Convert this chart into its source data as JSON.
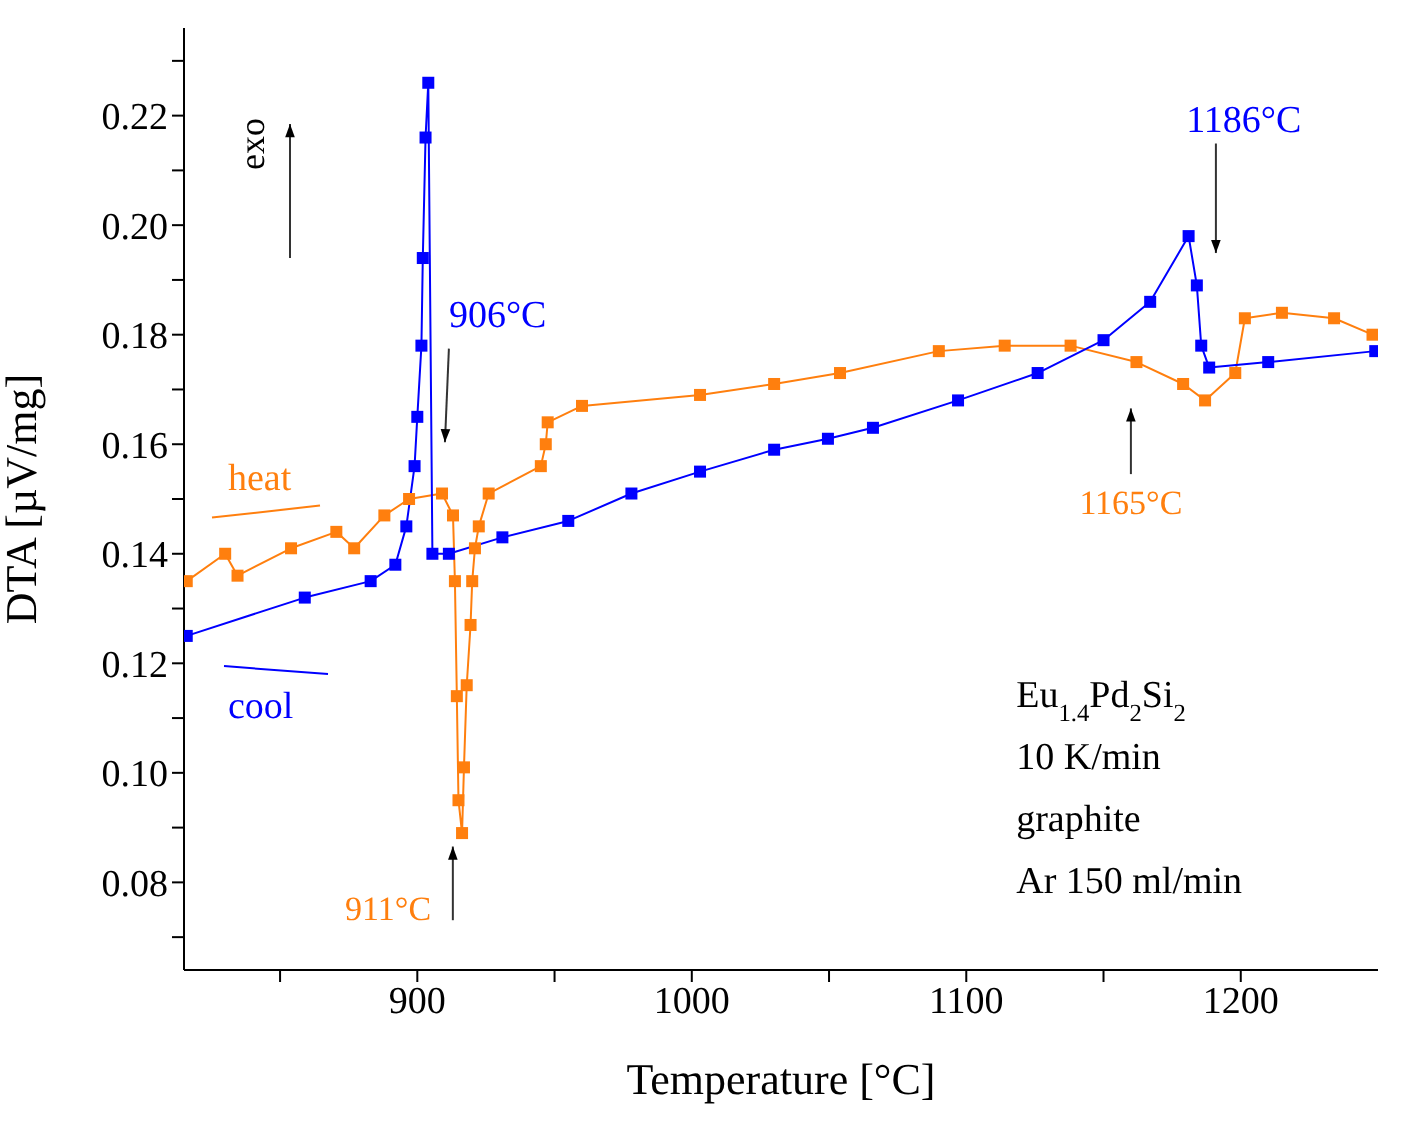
{
  "chart_data": {
    "type": "line",
    "xlabel": "Temperature [°C]",
    "ylabel": "DTA [µV/mg]",
    "xlim": [
      815,
      1250
    ],
    "ylim": [
      0.064,
      0.236
    ],
    "xticks": [
      {
        "value": 850,
        "label": null
      },
      900,
      {
        "value": 950,
        "label": null
      },
      1000,
      {
        "value": 1050,
        "label": null
      },
      1100,
      {
        "value": 1150,
        "label": null
      },
      1200
    ],
    "yticks": [
      {
        "value": 0.07,
        "label": null
      },
      0.08,
      {
        "value": 0.09,
        "label": null
      },
      {
        "value": 0.1,
        "label": "0.10"
      },
      {
        "value": 0.11,
        "label": null
      },
      0.12,
      {
        "value": 0.13,
        "label": null
      },
      0.14,
      {
        "value": 0.15,
        "label": null
      },
      0.16,
      {
        "value": 0.17,
        "label": null
      },
      0.18,
      {
        "value": 0.19,
        "label": null
      },
      {
        "value": 0.2,
        "label": "0.20"
      },
      {
        "value": 0.21,
        "label": null
      },
      0.22,
      {
        "value": 0.23,
        "label": null
      }
    ],
    "marker": "square",
    "line_style": "solid",
    "series": [
      {
        "name": "heat",
        "color": "#ff7f0e",
        "x": [
          816,
          830,
          834.5,
          854,
          870.5,
          877,
          888,
          897,
          909,
          913,
          913.7,
          914.4,
          915,
          916.3,
          917,
          918,
          919.4,
          920,
          921,
          922.4,
          926,
          945,
          946.8,
          947.5,
          960,
          1003,
          1030,
          1054,
          1090,
          1114,
          1138,
          1162,
          1179,
          1187,
          1198,
          1201.5,
          1215,
          1234,
          1248
        ],
        "values": [
          0.135,
          0.14,
          0.136,
          0.141,
          0.144,
          0.141,
          0.147,
          0.15,
          0.151,
          0.147,
          0.135,
          0.114,
          0.095,
          0.089,
          0.101,
          0.116,
          0.127,
          0.135,
          0.141,
          0.145,
          0.151,
          0.156,
          0.16,
          0.164,
          0.167,
          0.169,
          0.171,
          0.173,
          0.177,
          0.178,
          0.178,
          0.175,
          0.171,
          0.168,
          0.173,
          0.183,
          0.184,
          0.183,
          0.18
        ]
      },
      {
        "name": "cool",
        "color": "#0000ff",
        "x": [
          816,
          859,
          883,
          892,
          896,
          899,
          900,
          901.5,
          902,
          903,
          904,
          905.5,
          911.5,
          931,
          955,
          978,
          1003,
          1030,
          1049.6,
          1066,
          1097,
          1126,
          1150,
          1167,
          1181,
          1184,
          1185.6,
          1188.5,
          1210,
          1249
        ],
        "values": [
          0.125,
          0.132,
          0.135,
          0.138,
          0.145,
          0.156,
          0.165,
          0.178,
          0.194,
          0.216,
          0.226,
          0.14,
          0.14,
          0.143,
          0.146,
          0.151,
          0.155,
          0.159,
          0.161,
          0.163,
          0.168,
          0.173,
          0.179,
          0.186,
          0.198,
          0.189,
          0.178,
          0.174,
          0.175,
          0.177
        ]
      }
    ],
    "annotations": [
      "906°C",
      "911°C",
      "1186°C",
      "1165°C",
      "exo",
      "Eu$_{1.4}$Pd$_{2}$Si$_{2}$",
      "10 K/min",
      "graphite",
      "Ar 150 ml/min"
    ]
  }
}
